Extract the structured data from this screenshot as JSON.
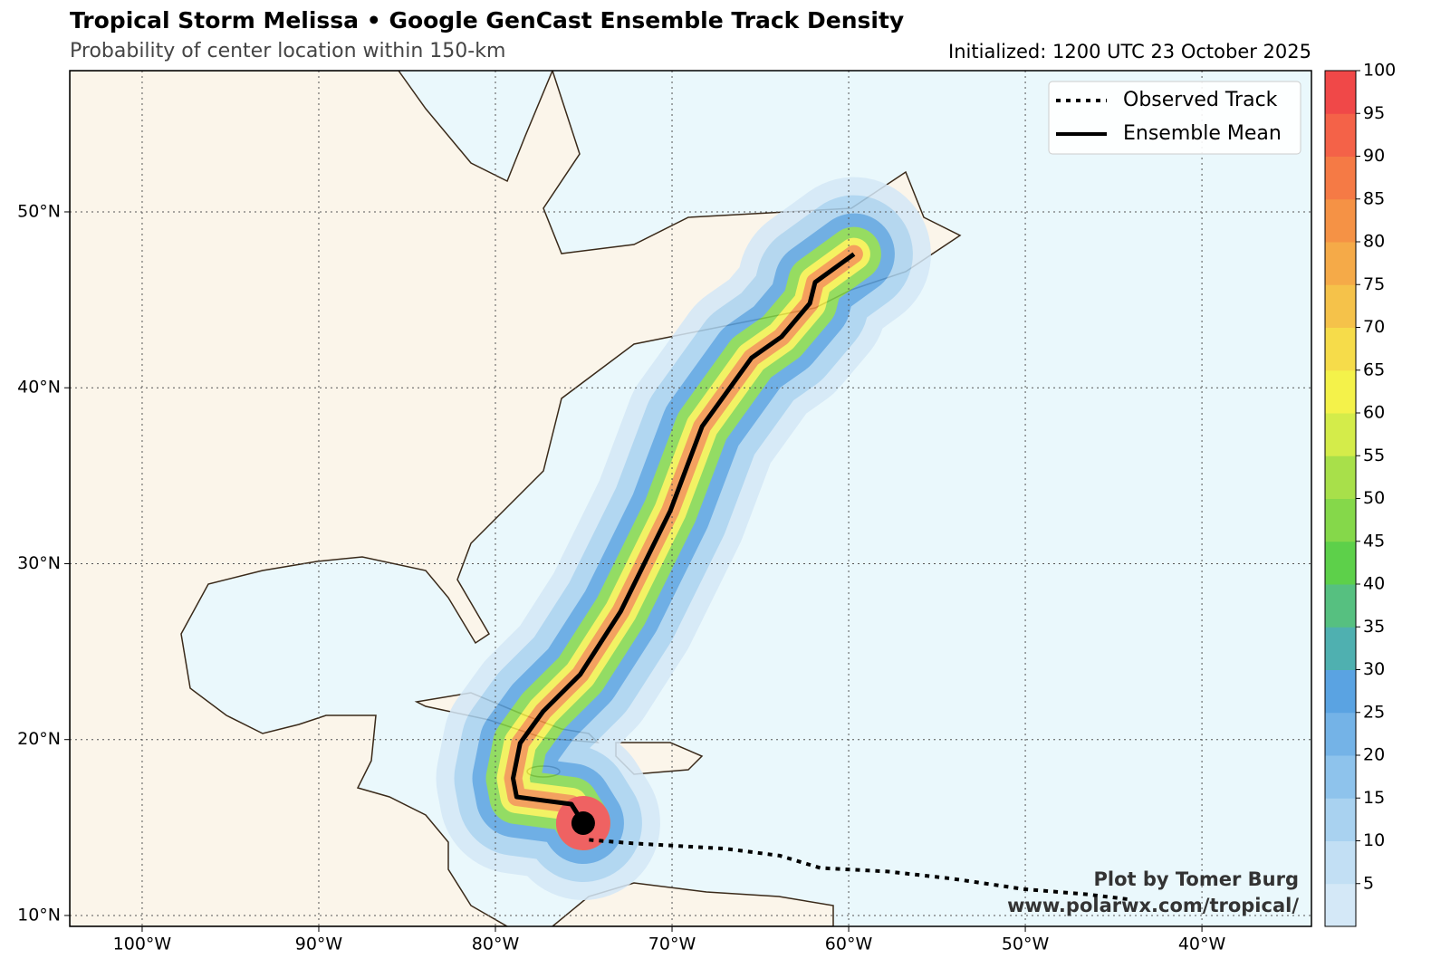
{
  "title": "Tropical Storm Melissa • Google GenCast Ensemble Track Density",
  "subtitle": "Probability of center location within 150-km",
  "initialized": "Initialized: 1200 UTC 23 October 2025",
  "map": {
    "xlim": [
      -104.1,
      -33.8
    ],
    "ylim": [
      9.38,
      58.03
    ],
    "grid": true,
    "xticks": [
      {
        "value": -100,
        "label": "100°W"
      },
      {
        "value": -90,
        "label": "90°W"
      },
      {
        "value": -80,
        "label": "80°W"
      },
      {
        "value": -70,
        "label": "70°W"
      },
      {
        "value": -60,
        "label": "60°W"
      },
      {
        "value": -50,
        "label": "50°W"
      },
      {
        "value": -40,
        "label": "40°W"
      }
    ],
    "yticks": [
      {
        "value": 10,
        "label": "10°N"
      },
      {
        "value": 20,
        "label": "20°N"
      },
      {
        "value": 30,
        "label": "30°N"
      },
      {
        "value": 40,
        "label": "40°N"
      },
      {
        "value": 50,
        "label": "50°N"
      }
    ]
  },
  "tracks": [
    {
      "name": "Observed Track",
      "style": "dotted",
      "color": "#000000",
      "lon": [
        -74.7,
        -72.2,
        -67.0,
        -63.9,
        -61.6,
        -57.8,
        -54.2,
        -50.1,
        -46.5,
        -44.0
      ],
      "lat": [
        14.3,
        14.1,
        13.8,
        13.4,
        12.7,
        12.5,
        12.1,
        11.5,
        11.2,
        10.9
      ]
    },
    {
      "name": "Ensemble Mean",
      "style": "solid",
      "color": "#000000",
      "lon": [
        -75.03,
        -75.7,
        -77.3,
        -78.8,
        -79.0,
        -78.6,
        -77.3,
        -75.2,
        -72.9,
        -70.1,
        -68.3,
        -65.5,
        -63.8,
        -62.2,
        -61.9,
        -59.7
      ],
      "lat": [
        15.25,
        16.33,
        16.54,
        16.74,
        17.8,
        19.8,
        21.6,
        23.7,
        27.3,
        33.0,
        37.8,
        41.7,
        42.9,
        44.8,
        46.0,
        47.6
      ]
    }
  ],
  "colorbar": {
    "range": [
      0,
      100
    ],
    "ticks": [
      5,
      10,
      15,
      20,
      25,
      30,
      35,
      40,
      45,
      50,
      55,
      60,
      65,
      70,
      75,
      80,
      85,
      90,
      95,
      100
    ],
    "colors": [
      "#d4e8f7",
      "#c2dff4",
      "#a9d2f0",
      "#8ec3ec",
      "#74b3e7",
      "#5aa3e2",
      "#4fb0b0",
      "#56c080",
      "#5dd04a",
      "#85d84a",
      "#a8e04a",
      "#d4ec4a",
      "#f4f24a",
      "#f6dc4a",
      "#f5c24a",
      "#f5aa48",
      "#f59245",
      "#f57a45",
      "#f46248",
      "#f04848"
    ]
  },
  "credit": [
    "Plot by Tomer Burg",
    "www.polarwx.com/tropical/"
  ]
}
